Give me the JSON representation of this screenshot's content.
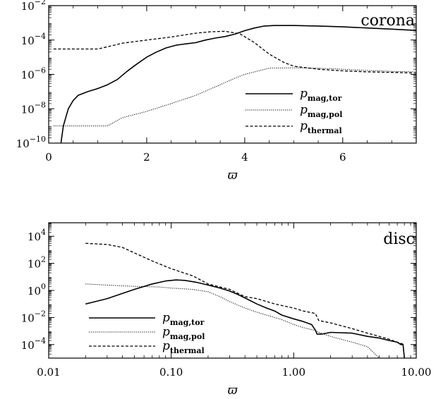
{
  "chart_data": [
    {
      "type": "line",
      "panel": "top",
      "annotation": "corona",
      "xlabel": "ϖ",
      "ylabel": "",
      "xscale": "linear",
      "yscale": "log",
      "xlim": [
        0,
        7.5
      ],
      "ylim": [
        1e-10,
        0.01
      ],
      "x_ticks": [
        "0",
        "2",
        "4",
        "6"
      ],
      "x_tick_values": [
        0,
        2,
        4,
        6
      ],
      "y_ticks": [
        {
          "base": "10",
          "exp": "−10",
          "value": 1e-10
        },
        {
          "base": "10",
          "exp": "−8",
          "value": 1e-08
        },
        {
          "base": "10",
          "exp": "−6",
          "value": 1e-06
        },
        {
          "base": "10",
          "exp": "−4",
          "value": 0.0001
        },
        {
          "base": "10",
          "exp": "−2",
          "value": 0.01
        }
      ],
      "legend": {
        "placement": "bottom-right",
        "entries": [
          {
            "p": "p",
            "sub": "mag,tor",
            "style": "solid"
          },
          {
            "p": "p",
            "sub": "mag,pol",
            "style": "dotted"
          },
          {
            "p": "p",
            "sub": "thermal",
            "style": "dashed"
          }
        ]
      },
      "series": [
        {
          "name": "p mag,tor",
          "style": "solid",
          "x": [
            0.25,
            0.3,
            0.4,
            0.5,
            0.6,
            0.8,
            1.0,
            1.2,
            1.4,
            1.6,
            1.8,
            2.0,
            2.2,
            2.4,
            2.6,
            2.8,
            3.0,
            3.2,
            3.4,
            3.6,
            3.8,
            4.0,
            4.2,
            4.4,
            4.6,
            5.0,
            5.5,
            6.0,
            6.5,
            7.0,
            7.5
          ],
          "y": [
            1e-10,
            1e-09,
            1e-08,
            3e-08,
            6e-08,
            1e-07,
            1.5e-07,
            2.5e-07,
            5e-07,
            1.5e-06,
            4e-06,
            1e-05,
            2e-05,
            3.5e-05,
            5e-05,
            6e-05,
            7e-05,
            0.0001,
            0.00013,
            0.00016,
            0.00022,
            0.00035,
            0.0005,
            0.00065,
            0.0007,
            0.0007,
            0.00065,
            0.00058,
            0.0005,
            0.00043,
            0.00036
          ]
        },
        {
          "name": "p mag,pol",
          "style": "dotted",
          "x": [
            0.1,
            0.5,
            1.0,
            1.2,
            1.5,
            2.0,
            2.5,
            3.0,
            3.5,
            3.8,
            4.0,
            4.5,
            5.0,
            5.5,
            6.0,
            6.5,
            7.0,
            7.5
          ],
          "y": [
            1e-09,
            1e-09,
            1e-09,
            1e-09,
            3e-09,
            7e-09,
            2e-08,
            6e-08,
            2.5e-07,
            6e-07,
            1e-06,
            2.3e-06,
            2.4e-06,
            2.3e-06,
            2e-06,
            1.7e-06,
            1.5e-06,
            1.4e-06
          ]
        },
        {
          "name": "p thermal",
          "style": "dashed",
          "x": [
            0.1,
            0.5,
            1.0,
            1.2,
            1.5,
            2.0,
            2.5,
            3.0,
            3.3,
            3.6,
            3.9,
            4.2,
            4.5,
            4.8,
            5.0,
            5.5,
            6.0,
            6.5,
            7.0,
            7.5
          ],
          "y": [
            3e-05,
            3e-05,
            3e-05,
            4e-05,
            6.5e-05,
            0.0001,
            0.00015,
            0.00025,
            0.0003,
            0.00032,
            0.00023,
            7e-05,
            1.5e-05,
            5e-06,
            3e-06,
            2e-06,
            1.6e-06,
            1.4e-06,
            1.3e-06,
            1.2e-06
          ]
        }
      ]
    },
    {
      "type": "line",
      "panel": "bottom",
      "annotation": "disc",
      "xlabel": "ϖ",
      "ylabel": "",
      "xscale": "log",
      "yscale": "log",
      "xlim": [
        0.01,
        10
      ],
      "ylim": [
        1e-05,
        100000.0
      ],
      "x_ticks": [
        "0.01",
        "0.10",
        "1.00",
        "10.00"
      ],
      "x_tick_values": [
        0.01,
        0.1,
        1,
        10
      ],
      "y_ticks": [
        {
          "base": "10",
          "exp": "−4",
          "value": 0.0001
        },
        {
          "base": "10",
          "exp": "−2",
          "value": 0.01
        },
        {
          "base": "10",
          "exp": "0",
          "value": 1
        },
        {
          "base": "10",
          "exp": "2",
          "value": 100
        },
        {
          "base": "10",
          "exp": "4",
          "value": 10000
        }
      ],
      "legend": {
        "placement": "bottom-left",
        "entries": [
          {
            "p": "p",
            "sub": "mag,tor",
            "style": "solid"
          },
          {
            "p": "p",
            "sub": "mag,pol",
            "style": "dotted"
          },
          {
            "p": "p",
            "sub": "thermal",
            "style": "dashed"
          }
        ]
      },
      "series": [
        {
          "name": "p mag,tor",
          "style": "solid",
          "x": [
            0.02,
            0.03,
            0.05,
            0.07,
            0.09,
            0.11,
            0.13,
            0.16,
            0.2,
            0.25,
            0.3,
            0.35,
            0.4,
            0.5,
            0.6,
            0.7,
            0.8,
            1.0,
            1.2,
            1.4,
            1.5,
            1.55,
            1.7,
            2.0,
            3.0,
            4.0,
            5.0,
            6.0,
            7.0,
            7.5,
            7.8,
            8.0
          ],
          "y": [
            0.1,
            0.25,
            1.2,
            3.0,
            5.0,
            6.0,
            5.5,
            4.0,
            2.5,
            1.5,
            0.9,
            0.5,
            0.28,
            0.1,
            0.05,
            0.03,
            0.015,
            0.008,
            0.005,
            0.003,
            0.0012,
            0.0006,
            0.0006,
            0.0008,
            0.0007,
            0.0004,
            0.0003,
            0.0002,
            0.00015,
            0.0001,
            0.0001,
            1e-05
          ]
        },
        {
          "name": "p mag,pol",
          "style": "dotted",
          "x": [
            0.02,
            0.03,
            0.05,
            0.08,
            0.1,
            0.15,
            0.2,
            0.25,
            0.3,
            0.4,
            0.5,
            0.6,
            0.8,
            1.0,
            1.2,
            1.5,
            1.6,
            2.0,
            3.0,
            4.0,
            5.0
          ],
          "y": [
            3.0,
            2.5,
            2.0,
            1.8,
            1.5,
            1.2,
            0.8,
            0.35,
            0.15,
            0.05,
            0.025,
            0.015,
            0.007,
            0.003,
            0.0018,
            0.0011,
            0.0008,
            0.0004,
            0.00015,
            7e-05,
            1e-05
          ]
        },
        {
          "name": "p thermal",
          "style": "dashed",
          "x": [
            0.02,
            0.03,
            0.04,
            0.05,
            0.07,
            0.1,
            0.15,
            0.2,
            0.3,
            0.4,
            0.5,
            0.7,
            1.0,
            1.2,
            1.5,
            1.6,
            2.0,
            3.0,
            4.0,
            5.0,
            6.0,
            7.0,
            8.0
          ],
          "y": [
            3000,
            2500,
            1500,
            600,
            150,
            40,
            12,
            3.0,
            1.2,
            0.35,
            0.25,
            0.1,
            0.05,
            0.03,
            0.02,
            0.006,
            0.004,
            0.0015,
            0.0007,
            0.0004,
            0.00025,
            0.00015,
            0.0001
          ]
        }
      ]
    }
  ]
}
